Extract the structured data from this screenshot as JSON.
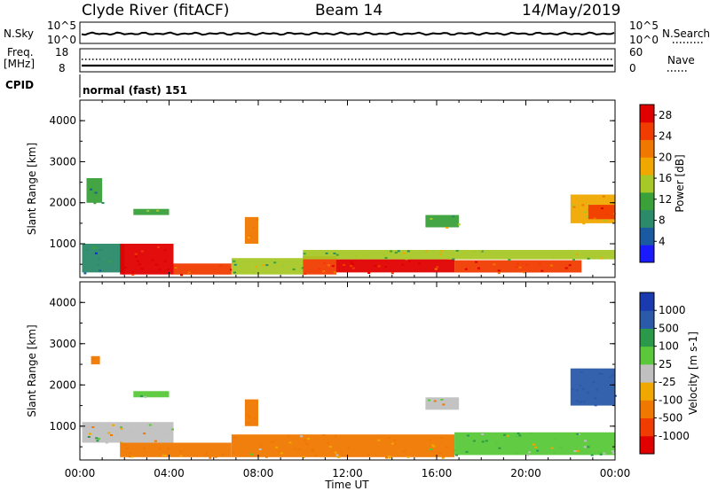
{
  "header": {
    "station": "Clyde River (fitACF)",
    "beam": "Beam 14",
    "date": "14/May/2019"
  },
  "top_panels": {
    "nsky_label": "N.Sky",
    "nsearch_label": "N.Search",
    "nsky_ticks": [
      "10^5",
      "10^0"
    ],
    "nsearch_ticks": [
      "10^5",
      "10^0"
    ],
    "freq_label_1": "Freq.",
    "freq_label_2": "[MHz]",
    "freq_ticks": [
      "18",
      "8"
    ],
    "nave_label": "Nave",
    "nave_ticks": [
      "60",
      "0"
    ],
    "cpid_label": "CPID",
    "cpid_value": "normal (fast) 151"
  },
  "colors": {
    "power_scale": [
      "#1a1aff",
      "#1a5aa0",
      "#2a8a6a",
      "#3aa03a",
      "#a8c828",
      "#f0a800",
      "#f07800",
      "#f03c00",
      "#e00000"
    ],
    "velocity_scale": [
      "#e00000",
      "#f03c00",
      "#f07800",
      "#f0a800",
      "#c0c0c0",
      "#5ac83a",
      "#2a9a4a",
      "#2a5aa8",
      "#1a3ab0"
    ]
  },
  "chart_data": [
    {
      "type": "heatmap",
      "panel": "power",
      "ylabel": "Slant Range [km]",
      "yticks": [
        1000,
        2000,
        3000,
        4000
      ],
      "ylim": [
        180,
        4500
      ],
      "xlim": [
        0,
        24
      ],
      "xticks": [
        "00:00",
        "04:00",
        "08:00",
        "12:00",
        "16:00",
        "20:00",
        "00:00"
      ],
      "colorbar": {
        "label": "Power [dB]",
        "ticks": [
          "28",
          "24",
          "20",
          "16",
          "12",
          "8",
          "4"
        ],
        "range": [
          0,
          30
        ]
      },
      "regions": [
        {
          "t0": 0.1,
          "t1": 2.0,
          "r0": 300,
          "r1": 1000,
          "value": 8
        },
        {
          "t0": 1.8,
          "t1": 4.2,
          "r0": 250,
          "r1": 1000,
          "value": 28
        },
        {
          "t0": 4.2,
          "t1": 6.8,
          "r0": 250,
          "r1": 520,
          "value": 26
        },
        {
          "t0": 6.8,
          "t1": 10.0,
          "r0": 250,
          "r1": 650,
          "value": 14
        },
        {
          "t0": 10.0,
          "t1": 11.5,
          "r0": 250,
          "r1": 700,
          "value": 24
        },
        {
          "t0": 11.5,
          "t1": 16.8,
          "r0": 300,
          "r1": 620,
          "value": 28
        },
        {
          "t0": 16.8,
          "t1": 22.5,
          "r0": 300,
          "r1": 600,
          "value": 26
        },
        {
          "t0": 10.0,
          "t1": 24.0,
          "r0": 620,
          "r1": 850,
          "value": 14
        },
        {
          "t0": 7.4,
          "t1": 8.0,
          "r0": 1000,
          "r1": 1650,
          "value": 22
        },
        {
          "t0": 2.4,
          "t1": 4.0,
          "r0": 1700,
          "r1": 1850,
          "value": 12
        },
        {
          "t0": 22.0,
          "t1": 24.0,
          "r0": 1500,
          "r1": 2200,
          "value": 18
        },
        {
          "t0": 22.8,
          "t1": 24.0,
          "r0": 1600,
          "r1": 1950,
          "value": 26
        },
        {
          "t0": 15.5,
          "t1": 17.0,
          "r0": 1400,
          "r1": 1700,
          "value": 12
        },
        {
          "t0": 0.3,
          "t1": 1.0,
          "r0": 2000,
          "r1": 2600,
          "value": 10
        }
      ]
    },
    {
      "type": "heatmap",
      "panel": "velocity",
      "ylabel": "Slant Range [km]",
      "yticks": [
        1000,
        2000,
        3000,
        4000
      ],
      "ylim": [
        180,
        4500
      ],
      "xlim": [
        0,
        24
      ],
      "xticks": [
        "00:00",
        "04:00",
        "08:00",
        "12:00",
        "16:00",
        "20:00",
        "00:00"
      ],
      "xlabel": "Time UT",
      "colorbar": {
        "label": "Velocity [m s-1]",
        "ticks": [
          "1000",
          "500",
          "100",
          "25",
          "-25",
          "-100",
          "-500",
          "-1000"
        ],
        "range": [
          -1000,
          1000
        ]
      },
      "regions": [
        {
          "t0": 0.1,
          "t1": 4.2,
          "r0": 600,
          "r1": 1100,
          "value": 0
        },
        {
          "t0": 1.8,
          "t1": 6.8,
          "r0": 250,
          "r1": 600,
          "value": -150
        },
        {
          "t0": 6.8,
          "t1": 16.8,
          "r0": 250,
          "r1": 800,
          "value": -120
        },
        {
          "t0": 16.8,
          "t1": 24.0,
          "r0": 300,
          "r1": 850,
          "value": 80
        },
        {
          "t0": 7.4,
          "t1": 8.0,
          "r0": 1000,
          "r1": 1650,
          "value": -300
        },
        {
          "t0": 2.4,
          "t1": 4.0,
          "r0": 1700,
          "r1": 1850,
          "value": 60
        },
        {
          "t0": 22.0,
          "t1": 24.0,
          "r0": 1500,
          "r1": 2400,
          "value": 700
        },
        {
          "t0": 15.5,
          "t1": 17.0,
          "r0": 1400,
          "r1": 1700,
          "value": 0
        },
        {
          "t0": 0.5,
          "t1": 0.9,
          "r0": 2500,
          "r1": 2700,
          "value": -300
        }
      ]
    }
  ]
}
